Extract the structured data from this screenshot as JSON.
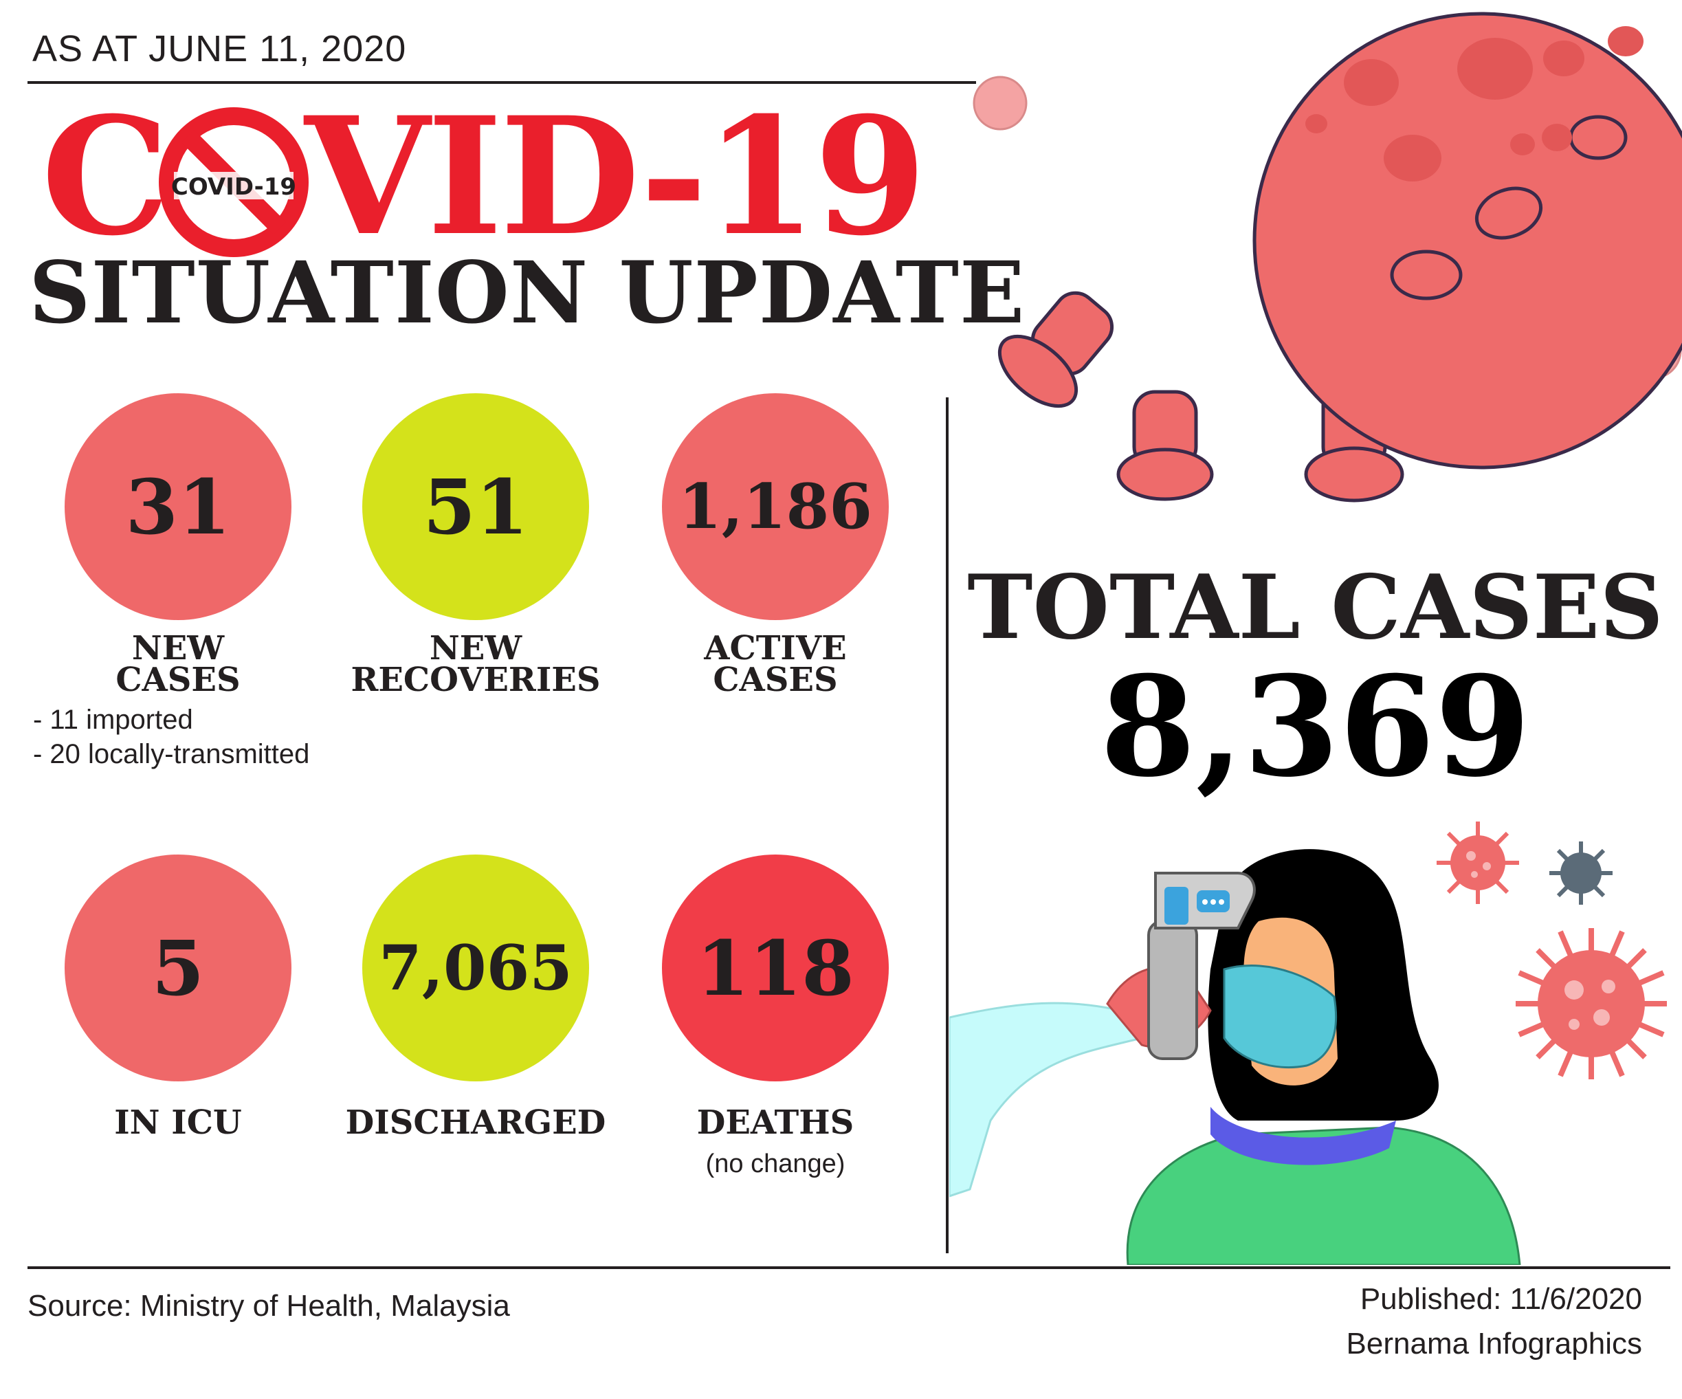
{
  "header": {
    "date_line": "AS AT JUNE 11, 2020",
    "title_part1": "C",
    "title_part2": "VID-19",
    "badge_text": "COVID-19",
    "subtitle": "SITUATION UPDATE"
  },
  "stats": {
    "new_cases": {
      "value": "31",
      "label_line1": "NEW",
      "label_line2": "CASES",
      "notes": [
        "-   11 imported",
        "-   20 locally-transmitted"
      ]
    },
    "new_recoveries": {
      "value": "51",
      "label_line1": "NEW",
      "label_line2": "RECOVERIES"
    },
    "active_cases": {
      "value": "1,186",
      "label_line1": "ACTIVE",
      "label_line2": "CASES"
    },
    "in_icu": {
      "value": "5",
      "label": "IN ICU"
    },
    "discharged": {
      "value": "7,065",
      "label": "DISCHARGED"
    },
    "deaths": {
      "value": "118",
      "label": "DEATHS",
      "note": "(no change)"
    }
  },
  "total": {
    "label": "TOTAL CASES",
    "value": "8,369"
  },
  "footer": {
    "source": "Source: Ministry of Health, Malaysia",
    "published": "Published: 11/6/2020",
    "credit": "Bernama Infographics"
  },
  "colors": {
    "pink": "#ef6869",
    "lime": "#d4e21b",
    "red": "#f13d48",
    "title_red": "#ea1f2c",
    "virus": "#ee6b6b"
  },
  "icons": [
    "virus-illustration",
    "no-sign-icon",
    "thermometer-illustration",
    "small-virus-icon"
  ]
}
